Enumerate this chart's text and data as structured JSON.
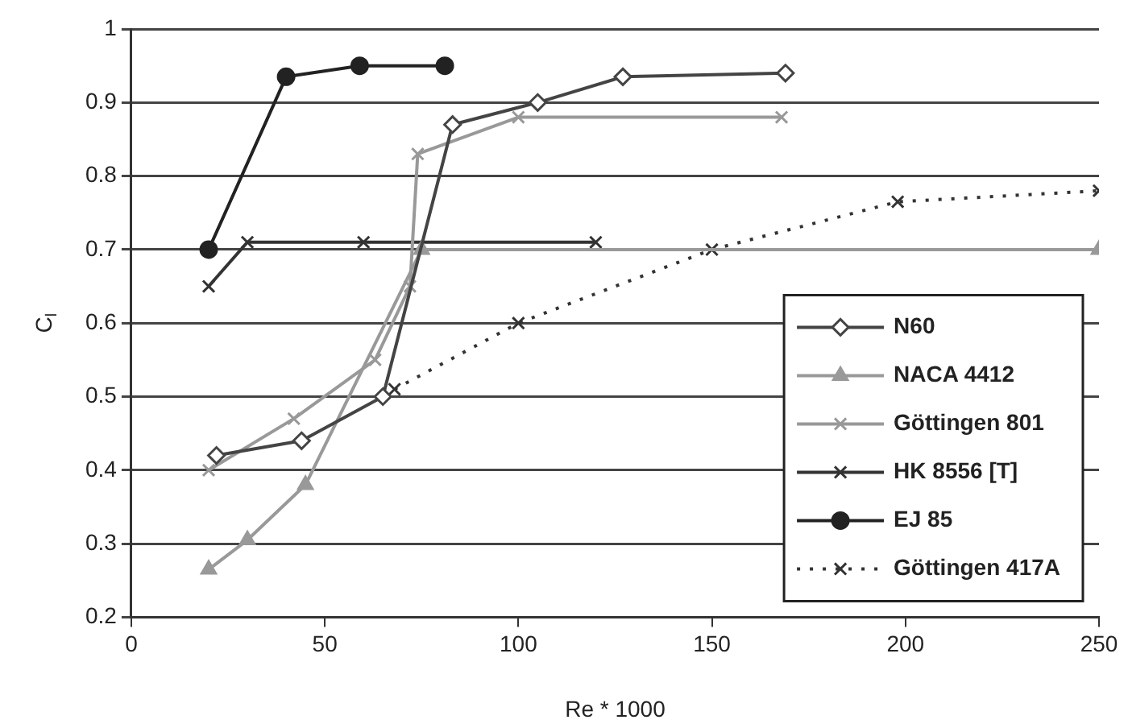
{
  "chart_data": {
    "type": "line",
    "xlabel": "Re * 1000",
    "ylabel": "C$_{l}$",
    "xlim": [
      0,
      250
    ],
    "xticks": [
      0,
      50,
      100,
      150,
      200,
      250
    ],
    "ylim": [
      0.2,
      1
    ],
    "yticks": [
      0.2,
      0.3,
      0.4,
      0.5,
      0.6,
      0.7,
      0.8,
      0.9,
      1
    ],
    "grid": "y",
    "legend": "bottom right",
    "series": [
      {
        "name": "N60",
        "color": "#444444",
        "marker": "diamond",
        "line_style": "solid",
        "x": [
          22,
          44,
          65,
          83,
          105,
          127,
          169
        ],
        "values": [
          0.42,
          0.44,
          0.5,
          0.87,
          0.9,
          0.935,
          0.94
        ]
      },
      {
        "name": "NACA 4412",
        "color": "#999999",
        "marker": "triangle",
        "line_style": "solid",
        "x": [
          20,
          30,
          45,
          75,
          250
        ],
        "values": [
          0.265,
          0.305,
          0.38,
          0.7,
          0.7
        ]
      },
      {
        "name": "Göttingen 801",
        "color": "#999999",
        "marker": "cross",
        "line_style": "solid",
        "x": [
          20,
          42,
          63,
          72,
          74,
          100,
          168
        ],
        "values": [
          0.4,
          0.47,
          0.55,
          0.65,
          0.83,
          0.88,
          0.88
        ]
      },
      {
        "name": "HK 8556 [T]",
        "color": "#333333",
        "marker": "cross",
        "line_style": "solid",
        "x": [
          20,
          30,
          60,
          120
        ],
        "values": [
          0.65,
          0.71,
          0.71,
          0.71
        ]
      },
      {
        "name": "EJ 85",
        "color": "#222222",
        "marker": "circle",
        "line_style": "solid",
        "x": [
          20,
          40,
          59,
          81
        ],
        "values": [
          0.7,
          0.935,
          0.95,
          0.95
        ]
      },
      {
        "name": "Göttingen 417A",
        "color": "#333333",
        "marker": "cross",
        "line_style": "dotted",
        "x": [
          68,
          100,
          150,
          198,
          250
        ],
        "values": [
          0.51,
          0.6,
          0.7,
          0.765,
          0.78
        ]
      }
    ]
  }
}
